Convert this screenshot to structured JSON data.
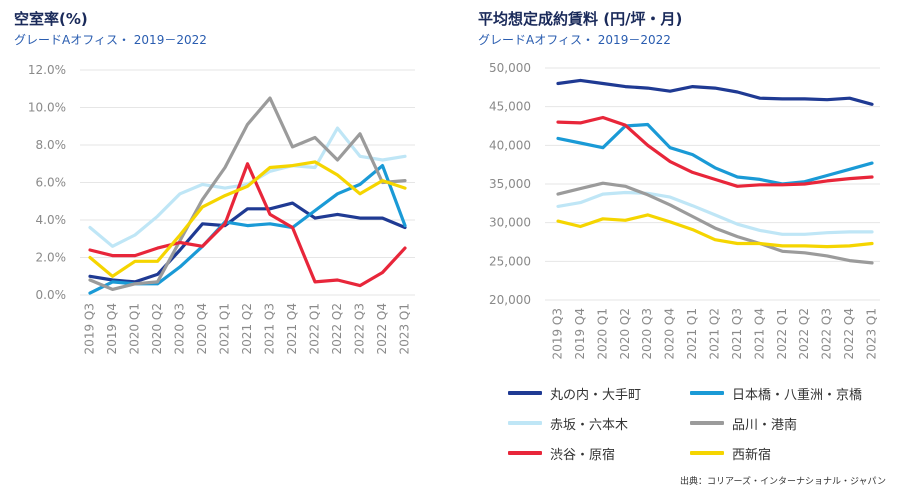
{
  "chart_data": [
    {
      "type": "line",
      "title": "空室率(%)",
      "subtitle": "グレードAオフィス・ 2019－2022",
      "categories": [
        "2019 Q3",
        "2019 Q4",
        "2020 Q1",
        "2020 Q2",
        "2020 Q3",
        "2020 Q4",
        "2021 Q1",
        "2021 Q2",
        "2021 Q3",
        "2021 Q4",
        "2022 Q1",
        "2022 Q2",
        "2022 Q3",
        "2022 Q4",
        "2023 Q1"
      ],
      "y_ticks": [
        "0.0%",
        "2.0%",
        "4.0%",
        "6.0%",
        "8.0%",
        "10.0%",
        "12.0%"
      ],
      "ylim": [
        0,
        12
      ],
      "grid": true,
      "series": [
        {
          "name": "丸の内・大手町",
          "color": "#1f3a93",
          "values": [
            1.0,
            0.8,
            0.7,
            1.1,
            2.4,
            3.8,
            3.7,
            4.6,
            4.6,
            4.9,
            4.1,
            4.3,
            4.1,
            4.1,
            3.6
          ]
        },
        {
          "name": "日本橋・八重洲・京橋",
          "color": "#1a9ad6",
          "values": [
            0.1,
            0.7,
            0.6,
            0.6,
            1.5,
            2.6,
            3.9,
            3.7,
            3.8,
            3.6,
            4.5,
            5.4,
            5.9,
            6.9,
            3.7
          ]
        },
        {
          "name": "赤坂・六本木",
          "color": "#bfe6f6",
          "values": [
            3.6,
            2.6,
            3.2,
            4.2,
            5.4,
            5.9,
            5.7,
            5.9,
            6.6,
            6.9,
            6.8,
            8.9,
            7.4,
            7.2,
            7.4
          ]
        },
        {
          "name": "品川・港南",
          "color": "#9b9b9b",
          "values": [
            0.8,
            0.3,
            0.6,
            0.7,
            2.9,
            5.1,
            6.8,
            9.1,
            10.5,
            7.9,
            8.4,
            7.2,
            8.6,
            6.0,
            6.1
          ]
        },
        {
          "name": "渋谷・原宿",
          "color": "#e8263a",
          "values": [
            2.4,
            2.1,
            2.1,
            2.5,
            2.8,
            2.6,
            3.8,
            7.0,
            4.3,
            3.6,
            0.7,
            0.8,
            0.5,
            1.2,
            2.5
          ]
        },
        {
          "name": "西新宿",
          "color": "#f5d500",
          "values": [
            2.0,
            1.0,
            1.8,
            1.8,
            3.2,
            4.7,
            5.3,
            5.8,
            6.8,
            6.9,
            7.1,
            6.4,
            5.4,
            6.1,
            5.7
          ]
        }
      ]
    },
    {
      "type": "line",
      "title": "平均想定成約賃料 (円/坪・月)",
      "subtitle": "グレードAオフィス・ 2019－2022",
      "categories": [
        "2019 Q3",
        "2019 Q4",
        "2020 Q1",
        "2020 Q2",
        "2020 Q3",
        "2020 Q4",
        "2021 Q1",
        "2021 Q2",
        "2021 Q3",
        "2021 Q4",
        "2022 Q1",
        "2022 Q2",
        "2022 Q3",
        "2022 Q4",
        "2023 Q1"
      ],
      "y_ticks": [
        "20,000",
        "25,000",
        "30,000",
        "35,000",
        "40,000",
        "45,000",
        "50,000"
      ],
      "ylim": [
        20000,
        50000
      ],
      "grid": true,
      "series": [
        {
          "name": "丸の内・大手町",
          "color": "#1f3a93",
          "values": [
            48000,
            48400,
            48000,
            47600,
            47400,
            47000,
            47600,
            47400,
            46900,
            46100,
            46000,
            46000,
            45900,
            46100,
            45300
          ]
        },
        {
          "name": "日本橋・八重洲・京橋",
          "color": "#1a9ad6",
          "values": [
            40900,
            40300,
            39700,
            42500,
            42700,
            39700,
            38800,
            37100,
            35900,
            35600,
            35000,
            35300,
            36100,
            36900,
            37700
          ]
        },
        {
          "name": "赤坂・六本木",
          "color": "#bfe6f6",
          "values": [
            32100,
            32600,
            33700,
            33900,
            33800,
            33300,
            32200,
            31000,
            29800,
            29000,
            28500,
            28500,
            28700,
            28800,
            28800
          ]
        },
        {
          "name": "品川・港南",
          "color": "#9b9b9b",
          "values": [
            33700,
            34400,
            35100,
            34700,
            33600,
            32300,
            30800,
            29300,
            28200,
            27300,
            26300,
            26100,
            25700,
            25100,
            24800
          ]
        },
        {
          "name": "渋谷・原宿",
          "color": "#e8263a",
          "values": [
            43000,
            42900,
            43600,
            42600,
            40000,
            37900,
            36500,
            35600,
            34700,
            34900,
            34900,
            35000,
            35400,
            35700,
            35900
          ]
        },
        {
          "name": "西新宿",
          "color": "#f5d500",
          "values": [
            30200,
            29500,
            30500,
            30300,
            31000,
            30100,
            29100,
            27800,
            27300,
            27300,
            27000,
            27000,
            26900,
            27000,
            27300
          ]
        }
      ]
    }
  ],
  "legend": [
    {
      "label": "丸の内・大手町",
      "color": "#1f3a93"
    },
    {
      "label": "日本橋・八重洲・京橋",
      "color": "#1a9ad6"
    },
    {
      "label": "赤坂・六本木",
      "color": "#bfe6f6"
    },
    {
      "label": "品川・港南",
      "color": "#9b9b9b"
    },
    {
      "label": "渋谷・原宿",
      "color": "#e8263a"
    },
    {
      "label": "西新宿",
      "color": "#f5d500"
    }
  ],
  "source": "出典：コリアーズ・インターナショナル・ジャパン"
}
